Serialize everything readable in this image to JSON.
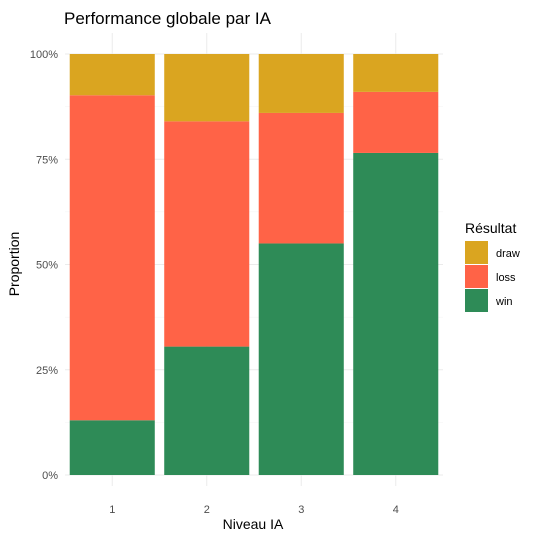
{
  "chart_data": {
    "type": "bar",
    "stacked": true,
    "title": "Performance globale par IA",
    "xlabel": "Niveau IA",
    "ylabel": "Proportion",
    "categories": [
      "1",
      "2",
      "3",
      "4"
    ],
    "series": [
      {
        "name": "win",
        "values": [
          0.13,
          0.305,
          0.55,
          0.765
        ]
      },
      {
        "name": "loss",
        "values": [
          0.772,
          0.535,
          0.31,
          0.145
        ]
      },
      {
        "name": "draw",
        "values": [
          0.098,
          0.16,
          0.14,
          0.09
        ]
      }
    ],
    "ylim": [
      0,
      1
    ],
    "yticks": [
      0,
      0.25,
      0.5,
      0.75,
      1
    ],
    "ytick_labels": [
      "0%",
      "25%",
      "50%",
      "75%",
      "100%"
    ],
    "grid": true,
    "legend": {
      "title": "Résultat",
      "position": "right",
      "entries": [
        "draw",
        "loss",
        "win"
      ]
    },
    "colors": {
      "win": "#2E8B57",
      "loss": "#FF6347",
      "draw": "#DAA520"
    }
  }
}
